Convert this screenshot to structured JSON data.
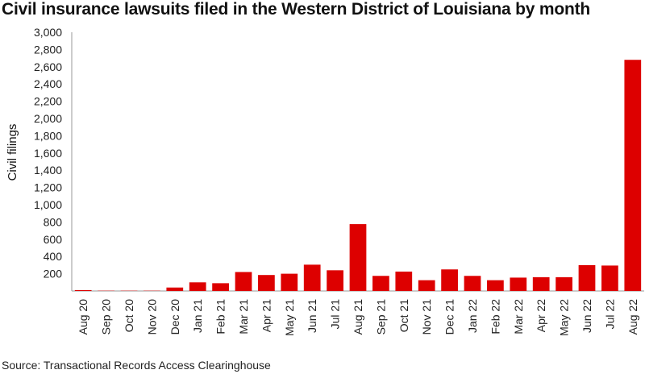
{
  "chart_data": {
    "type": "bar",
    "title": "Civil insurance lawsuits filed in the Western District of Louisiana by month",
    "ylabel": "Civil filings",
    "xlabel": "",
    "ylim": [
      0,
      3000
    ],
    "yticks": [
      200,
      400,
      600,
      800,
      1000,
      1200,
      1400,
      1600,
      1800,
      2000,
      2200,
      2400,
      2600,
      2800,
      3000
    ],
    "ytick_labels": [
      "200",
      "400",
      "600",
      "800",
      "1,000",
      "1,200",
      "1,400",
      "1,600",
      "1,800",
      "2,000",
      "2,200",
      "2,400",
      "2,600",
      "2,800",
      "3,000"
    ],
    "categories": [
      "Aug 20",
      "Sep 20",
      "Oct 20",
      "Nov 20",
      "Dec 20",
      "Jan 21",
      "Feb 21",
      "Mar 21",
      "Apr 21",
      "May 21",
      "Jun 21",
      "Jul 21",
      "Aug 21",
      "Sep 21",
      "Oct 21",
      "Nov 21",
      "Dec 21",
      "Jan 22",
      "Feb 22",
      "Mar 22",
      "Apr 22",
      "May 22",
      "Jun 22",
      "Jul 22",
      "Aug 22"
    ],
    "values": [
      10,
      3,
      3,
      3,
      40,
      100,
      90,
      220,
      185,
      200,
      305,
      240,
      775,
      175,
      225,
      125,
      250,
      175,
      125,
      155,
      160,
      160,
      300,
      295,
      2680
    ],
    "bar_color": "#dd0000",
    "grid": false,
    "legend": "none"
  },
  "source": "Source: Transactional Records Access Clearinghouse"
}
